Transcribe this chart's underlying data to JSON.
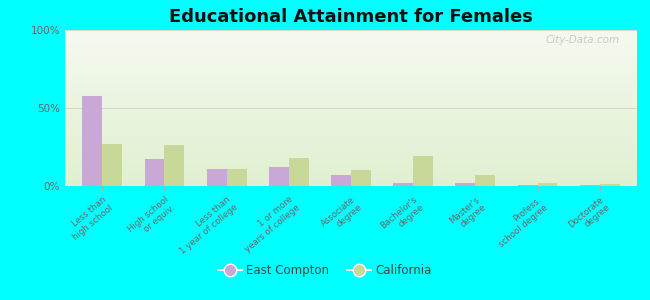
{
  "title": "Educational Attainment for Females",
  "categories": [
    "Less than\nhigh school",
    "High school\nor equiv.",
    "Less than\n1 year of college",
    "1 or more\nyears of college",
    "Associate\ndegree",
    "Bachelor's\ndegree",
    "Master's\ndegree",
    "Profess.\nschool degree",
    "Doctorate\ndegree"
  ],
  "east_compton": [
    58,
    17,
    11,
    12,
    7,
    2,
    2,
    0.5,
    0.5
  ],
  "california": [
    27,
    26,
    11,
    18,
    10,
    19,
    7,
    2,
    1
  ],
  "east_compton_color": "#c9a8d8",
  "california_color": "#c8d898",
  "background_color": "#e8f0d8",
  "ylim": [
    0,
    100
  ],
  "yticks": [
    0,
    50,
    100
  ],
  "ytick_labels": [
    "0%",
    "50%",
    "100%"
  ],
  "watermark": "City-Data.com",
  "legend_east_compton": "East Compton",
  "legend_california": "California",
  "bg_color": "#00ffff"
}
